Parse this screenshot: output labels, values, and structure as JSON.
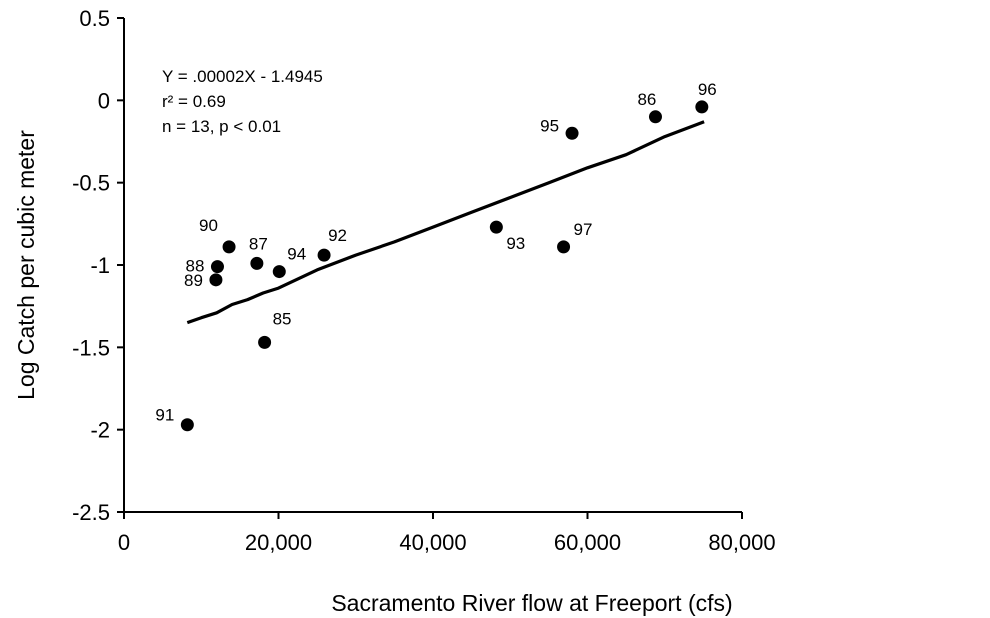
{
  "chart_data": {
    "type": "scatter",
    "title": "",
    "xlabel": "Sacramento River flow at Freeport (cfs)",
    "ylabel": "Log Catch per cubic meter",
    "xlim": [
      0,
      80000
    ],
    "ylim": [
      -2.5,
      0.5
    ],
    "xticks": [
      0,
      20000,
      40000,
      60000,
      80000
    ],
    "xtick_labels": [
      "0",
      "20,000",
      "40,000",
      "60,000",
      "80,000"
    ],
    "yticks": [
      0.5,
      0,
      -0.5,
      -1,
      -1.5,
      -2,
      -2.5
    ],
    "ytick_labels": [
      "0.5",
      "0",
      "-0.5",
      "-1",
      "-1.5",
      "-2",
      "-2.5"
    ],
    "grid": false,
    "legend": "none",
    "points": [
      {
        "label": "85",
        "x": 18200,
        "y": -1.47
      },
      {
        "label": "86",
        "x": 68800,
        "y": -0.1
      },
      {
        "label": "87",
        "x": 17200,
        "y": -0.99
      },
      {
        "label": "88",
        "x": 12100,
        "y": -1.01
      },
      {
        "label": "89",
        "x": 11900,
        "y": -1.09
      },
      {
        "label": "90",
        "x": 13600,
        "y": -0.89
      },
      {
        "label": "91",
        "x": 8200,
        "y": -1.97
      },
      {
        "label": "92",
        "x": 25900,
        "y": -0.94
      },
      {
        "label": "93",
        "x": 48200,
        "y": -0.77
      },
      {
        "label": "94",
        "x": 20100,
        "y": -1.04
      },
      {
        "label": "95",
        "x": 58000,
        "y": -0.2
      },
      {
        "label": "96",
        "x": 74800,
        "y": -0.04
      },
      {
        "label": "97",
        "x": 56900,
        "y": -0.89
      }
    ],
    "trendline": {
      "x": [
        8200,
        10000,
        12000,
        14000,
        16000,
        18000,
        20000,
        25000,
        30000,
        35000,
        40000,
        45000,
        50000,
        55000,
        60000,
        65000,
        70000,
        74000,
        75100
      ],
      "y": [
        -1.35,
        -1.32,
        -1.29,
        -1.24,
        -1.21,
        -1.17,
        -1.14,
        -1.03,
        -0.94,
        -0.86,
        -0.77,
        -0.68,
        -0.59,
        -0.5,
        -0.41,
        -0.33,
        -0.22,
        -0.15,
        -0.13
      ]
    },
    "annotations": [
      "Y = .00002X - 1.4945",
      "r² = 0.69",
      "n = 13, p < 0.01"
    ],
    "colors": {
      "marker": "#000000",
      "line": "#000000",
      "axis": "#000000"
    }
  }
}
